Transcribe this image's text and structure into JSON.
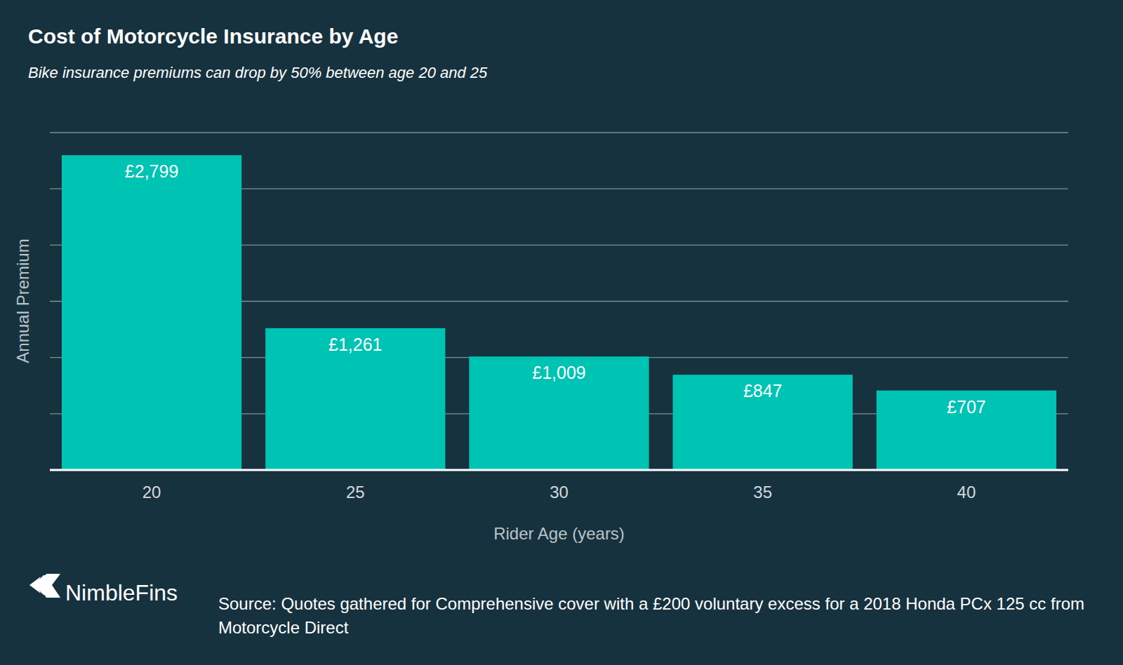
{
  "chart_data": {
    "type": "bar",
    "title": "Cost of Motorcycle Insurance by Age",
    "subtitle": "Bike insurance premiums can drop by 50% between age 20 and 25",
    "x_label": "Rider Age (years)",
    "y_label": "Annual Premium",
    "categories": [
      "20",
      "25",
      "30",
      "35",
      "40"
    ],
    "values": [
      2799,
      1261,
      1009,
      847,
      707
    ],
    "value_labels": [
      "£2,799",
      "£1,261",
      "£1,009",
      "£847",
      "£707"
    ],
    "color": "#00c4b3",
    "ylim": [
      0,
      3000
    ],
    "yticks": [
      0,
      500,
      1000,
      1500,
      2000,
      2500,
      3000
    ],
    "grid": true,
    "data_labels": true,
    "tick_labels": "x",
    "brand": "NimbleFins",
    "source": "Source: Quotes gathered for Comprehensive cover with a £200 voluntary excess for a 2018 Honda PCx 125 cc from Motorcycle Direct"
  }
}
